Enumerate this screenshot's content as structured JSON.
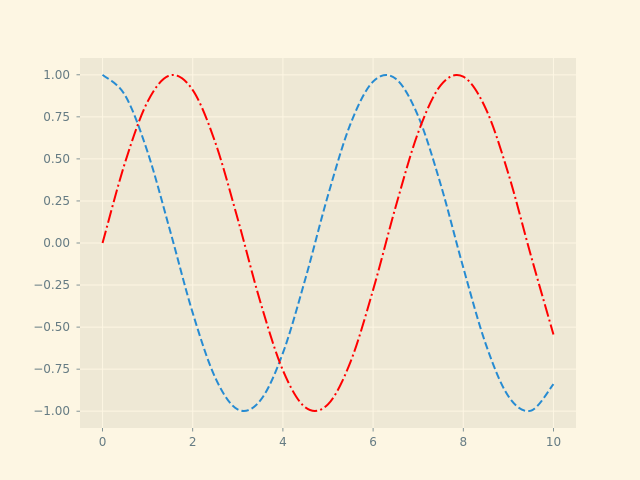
{
  "chart_data": {
    "type": "line",
    "title": "",
    "xlabel": "",
    "ylabel": "",
    "xlim": [
      -0.5,
      10.5
    ],
    "ylim": [
      -1.1,
      1.1
    ],
    "grid": true,
    "legend": "none",
    "x_ticks": [
      0,
      2,
      4,
      6,
      8,
      10
    ],
    "x_tick_labels": [
      "0",
      "2",
      "4",
      "6",
      "8",
      "10"
    ],
    "y_ticks": [
      1.0,
      0.75,
      0.5,
      0.25,
      0.0,
      -0.25,
      -0.5,
      -0.75,
      -1.0
    ],
    "y_tick_labels": [
      "1.00",
      "0.75",
      "0.50",
      "0.25",
      "0.00",
      "−0.25",
      "−0.50",
      "−0.75",
      "−1.00"
    ],
    "x": [
      0,
      0.5,
      1,
      1.5,
      2,
      2.5,
      3,
      3.5,
      4,
      4.5,
      5,
      5.5,
      6,
      6.5,
      7,
      7.5,
      8,
      8.5,
      9,
      9.5,
      10
    ],
    "series": [
      {
        "function": "cos(x)",
        "color": "#268bd2",
        "dash": "dashed",
        "values": [
          1.0,
          0.878,
          0.54,
          0.071,
          -0.416,
          -0.801,
          -0.99,
          -0.936,
          -0.654,
          -0.211,
          0.284,
          0.709,
          0.96,
          0.977,
          0.754,
          0.347,
          -0.146,
          -0.602,
          -0.911,
          -0.997,
          -0.839
        ]
      },
      {
        "function": "sin(x)",
        "color": "#ff0000",
        "dash": "dashdot",
        "values": [
          0.0,
          0.479,
          0.841,
          0.997,
          0.909,
          0.598,
          0.141,
          -0.351,
          -0.757,
          -0.978,
          -0.959,
          -0.706,
          -0.279,
          0.215,
          0.657,
          0.938,
          0.989,
          0.798,
          0.412,
          -0.075,
          -0.544
        ]
      }
    ]
  },
  "colors": {
    "figure_bg": "#fdf6e3",
    "axes_bg": "#eee8d5",
    "grid": "#fdf6e3",
    "tick_text": "#657b83"
  }
}
